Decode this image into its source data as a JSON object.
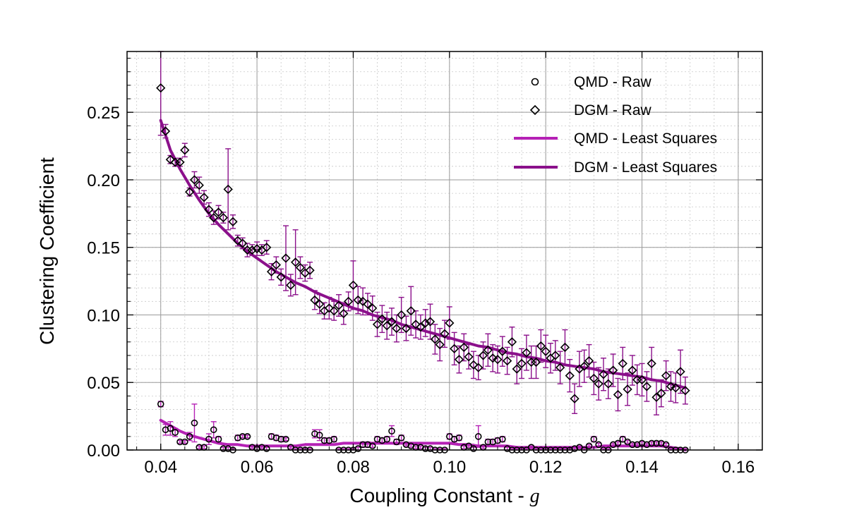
{
  "chart_data": {
    "type": "scatter",
    "xlabel": "Coupling Constant - ",
    "xlabel_symbol": "g",
    "ylabel": "Clustering Coefficient",
    "xlim": [
      0.033,
      0.165
    ],
    "ylim": [
      0.0,
      0.295
    ],
    "xticks": [
      0.04,
      0.06,
      0.08,
      0.1,
      0.12,
      0.14,
      0.16
    ],
    "xtick_labels": [
      "0.04",
      "0.06",
      "0.08",
      "0.10",
      "0.12",
      "0.14",
      "0.16"
    ],
    "yticks": [
      0.0,
      0.05,
      0.1,
      0.15,
      0.2,
      0.25
    ],
    "ytick_labels": [
      "0.00",
      "0.05",
      "0.10",
      "0.15",
      "0.20",
      "0.25"
    ],
    "grid": true,
    "legend_position": "top-right",
    "legend": [
      {
        "label": "QMD - Raw",
        "marker": "circle"
      },
      {
        "label": "DGM - Raw",
        "marker": "diamond"
      },
      {
        "label": "QMD - Least Squares",
        "marker": "line"
      },
      {
        "label": "DGM - Least Squares",
        "marker": "line"
      }
    ],
    "colors": {
      "qmd_fit": "#b521b5",
      "dgm_fit": "#8b108b",
      "qmd_error": "#b521b5",
      "dgm_error": "#8b108b",
      "marker": "#000000",
      "grid_major": "#9a9a9a",
      "grid_minor": "#c8c8c8"
    },
    "series": [
      {
        "name": "QMD - Raw",
        "marker": "circle",
        "x": [
          0.04,
          0.041,
          0.042,
          0.043,
          0.044,
          0.045,
          0.046,
          0.047,
          0.048,
          0.049,
          0.05,
          0.051,
          0.052,
          0.053,
          0.054,
          0.055,
          0.056,
          0.057,
          0.058,
          0.059,
          0.06,
          0.061,
          0.062,
          0.063,
          0.064,
          0.065,
          0.066,
          0.067,
          0.068,
          0.069,
          0.07,
          0.071,
          0.072,
          0.073,
          0.074,
          0.075,
          0.076,
          0.077,
          0.078,
          0.079,
          0.08,
          0.081,
          0.082,
          0.083,
          0.084,
          0.085,
          0.086,
          0.087,
          0.088,
          0.089,
          0.09,
          0.091,
          0.092,
          0.093,
          0.094,
          0.095,
          0.096,
          0.097,
          0.098,
          0.099,
          0.1,
          0.101,
          0.102,
          0.103,
          0.104,
          0.105,
          0.106,
          0.107,
          0.108,
          0.109,
          0.11,
          0.111,
          0.112,
          0.113,
          0.114,
          0.115,
          0.116,
          0.117,
          0.118,
          0.119,
          0.12,
          0.121,
          0.122,
          0.123,
          0.124,
          0.125,
          0.126,
          0.127,
          0.128,
          0.129,
          0.13,
          0.131,
          0.132,
          0.133,
          0.134,
          0.135,
          0.136,
          0.137,
          0.138,
          0.139,
          0.14,
          0.141,
          0.142,
          0.143,
          0.144,
          0.145,
          0.146,
          0.147,
          0.148,
          0.149
        ],
        "y": [
          0.034,
          0.015,
          0.016,
          0.013,
          0.006,
          0.006,
          0.01,
          0.02,
          0.002,
          0.002,
          0.008,
          0.015,
          0.008,
          0.001,
          0.001,
          0.0,
          0.009,
          0.01,
          0.01,
          0.002,
          0.001,
          0.002,
          0.001,
          0.01,
          0.009,
          0.008,
          0.008,
          0.002,
          0.0,
          0.0,
          0.0,
          0.0,
          0.012,
          0.011,
          0.007,
          0.007,
          0.008,
          0.0,
          0.0,
          0.0,
          0.0,
          0.001,
          0.004,
          0.004,
          0.003,
          0.008,
          0.007,
          0.008,
          0.014,
          0.006,
          0.009,
          0.004,
          0.003,
          0.002,
          0.002,
          0.001,
          0.001,
          0.0,
          0.0,
          0.0,
          0.01,
          0.008,
          0.009,
          0.002,
          0.003,
          0.001,
          0.01,
          0.002,
          0.006,
          0.006,
          0.007,
          0.008,
          0.001,
          0.0,
          0.0,
          0.0,
          0.0,
          0.002,
          0.0,
          0.0,
          0.0,
          0.0,
          0.0,
          0.0,
          0.0,
          0.0,
          0.001,
          0.002,
          0.0,
          0.003,
          0.008,
          0.004,
          0.0,
          0.0,
          0.004,
          0.005,
          0.008,
          0.006,
          0.004,
          0.004,
          0.005,
          0.004,
          0.005,
          0.005,
          0.005,
          0.004,
          0.0,
          0.0,
          0.0,
          0.0
        ],
        "yerr": [
          0.002,
          0.004,
          0.005,
          0.003,
          0.001,
          0.001,
          0.003,
          0.014,
          0.001,
          0.001,
          0.004,
          0.006,
          0.002,
          0.001,
          0.001,
          0.001,
          0.002,
          0.001,
          0.001,
          0.001,
          0.001,
          0.001,
          0.001,
          0.002,
          0.002,
          0.002,
          0.001,
          0.001,
          0.001,
          0.001,
          0.001,
          0.001,
          0.003,
          0.004,
          0.002,
          0.002,
          0.002,
          0.001,
          0.001,
          0.001,
          0.001,
          0.001,
          0.002,
          0.002,
          0.001,
          0.002,
          0.002,
          0.002,
          0.004,
          0.002,
          0.002,
          0.001,
          0.001,
          0.001,
          0.001,
          0.001,
          0.001,
          0.001,
          0.001,
          0.001,
          0.002,
          0.002,
          0.002,
          0.001,
          0.001,
          0.001,
          0.008,
          0.001,
          0.002,
          0.002,
          0.002,
          0.002,
          0.001,
          0.001,
          0.001,
          0.001,
          0.001,
          0.001,
          0.001,
          0.001,
          0.001,
          0.001,
          0.001,
          0.001,
          0.001,
          0.001,
          0.001,
          0.001,
          0.001,
          0.001,
          0.002,
          0.001,
          0.001,
          0.001,
          0.001,
          0.001,
          0.002,
          0.001,
          0.001,
          0.001,
          0.001,
          0.001,
          0.001,
          0.001,
          0.001,
          0.001,
          0.001,
          0.001,
          0.001,
          0.001
        ]
      },
      {
        "name": "DGM - Raw",
        "marker": "diamond",
        "x": [
          0.04,
          0.041,
          0.042,
          0.043,
          0.044,
          0.045,
          0.046,
          0.047,
          0.048,
          0.049,
          0.05,
          0.051,
          0.052,
          0.053,
          0.054,
          0.055,
          0.056,
          0.057,
          0.058,
          0.059,
          0.06,
          0.061,
          0.062,
          0.063,
          0.064,
          0.065,
          0.066,
          0.067,
          0.068,
          0.069,
          0.07,
          0.071,
          0.072,
          0.073,
          0.074,
          0.075,
          0.076,
          0.077,
          0.078,
          0.079,
          0.08,
          0.081,
          0.082,
          0.083,
          0.084,
          0.085,
          0.086,
          0.087,
          0.088,
          0.089,
          0.09,
          0.091,
          0.092,
          0.093,
          0.094,
          0.095,
          0.096,
          0.097,
          0.098,
          0.099,
          0.1,
          0.101,
          0.102,
          0.103,
          0.104,
          0.105,
          0.106,
          0.107,
          0.108,
          0.109,
          0.11,
          0.111,
          0.112,
          0.113,
          0.114,
          0.115,
          0.116,
          0.117,
          0.118,
          0.119,
          0.12,
          0.121,
          0.122,
          0.123,
          0.124,
          0.125,
          0.126,
          0.127,
          0.128,
          0.129,
          0.13,
          0.131,
          0.132,
          0.133,
          0.134,
          0.135,
          0.136,
          0.137,
          0.138,
          0.139,
          0.14,
          0.141,
          0.142,
          0.143,
          0.144,
          0.145,
          0.146,
          0.147,
          0.148,
          0.149
        ],
        "y": [
          0.268,
          0.236,
          0.215,
          0.213,
          0.213,
          0.222,
          0.191,
          0.2,
          0.196,
          0.187,
          0.178,
          0.172,
          0.176,
          0.172,
          0.193,
          0.169,
          0.155,
          0.153,
          0.148,
          0.148,
          0.149,
          0.148,
          0.15,
          0.132,
          0.137,
          0.128,
          0.142,
          0.122,
          0.139,
          0.135,
          0.131,
          0.133,
          0.111,
          0.108,
          0.103,
          0.105,
          0.103,
          0.107,
          0.101,
          0.11,
          0.122,
          0.111,
          0.11,
          0.108,
          0.105,
          0.093,
          0.097,
          0.092,
          0.095,
          0.09,
          0.1,
          0.09,
          0.103,
          0.093,
          0.091,
          0.094,
          0.095,
          0.082,
          0.078,
          0.086,
          0.094,
          0.075,
          0.067,
          0.076,
          0.069,
          0.063,
          0.061,
          0.07,
          0.074,
          0.068,
          0.067,
          0.073,
          0.066,
          0.08,
          0.06,
          0.064,
          0.072,
          0.065,
          0.065,
          0.077,
          0.073,
          0.068,
          0.07,
          0.061,
          0.076,
          0.055,
          0.038,
          0.06,
          0.062,
          0.066,
          0.053,
          0.049,
          0.056,
          0.049,
          0.059,
          0.041,
          0.064,
          0.045,
          0.059,
          0.052,
          0.052,
          0.047,
          0.064,
          0.039,
          0.042,
          0.055,
          0.047,
          0.046,
          0.058,
          0.044
        ],
        "yerr": [
          0.035,
          0.005,
          0.003,
          0.003,
          0.003,
          0.005,
          0.003,
          0.006,
          0.006,
          0.005,
          0.005,
          0.005,
          0.005,
          0.004,
          0.03,
          0.005,
          0.004,
          0.004,
          0.005,
          0.004,
          0.005,
          0.004,
          0.005,
          0.006,
          0.006,
          0.006,
          0.024,
          0.008,
          0.024,
          0.008,
          0.006,
          0.006,
          0.007,
          0.007,
          0.006,
          0.008,
          0.007,
          0.008,
          0.008,
          0.007,
          0.018,
          0.01,
          0.01,
          0.008,
          0.009,
          0.009,
          0.01,
          0.01,
          0.01,
          0.01,
          0.013,
          0.009,
          0.018,
          0.01,
          0.009,
          0.01,
          0.013,
          0.011,
          0.012,
          0.01,
          0.012,
          0.012,
          0.01,
          0.01,
          0.009,
          0.01,
          0.009,
          0.01,
          0.012,
          0.01,
          0.01,
          0.011,
          0.01,
          0.011,
          0.011,
          0.011,
          0.013,
          0.012,
          0.012,
          0.012,
          0.012,
          0.011,
          0.011,
          0.012,
          0.013,
          0.012,
          0.011,
          0.013,
          0.012,
          0.012,
          0.012,
          0.012,
          0.012,
          0.011,
          0.012,
          0.012,
          0.012,
          0.012,
          0.011,
          0.011,
          0.012,
          0.011,
          0.012,
          0.013,
          0.01,
          0.011,
          0.011,
          0.011,
          0.016,
          0.01
        ]
      },
      {
        "name": "QMD - Least Squares",
        "x": [
          0.04,
          0.042,
          0.044,
          0.046,
          0.048,
          0.05,
          0.052,
          0.054,
          0.056,
          0.058,
          0.06,
          0.062,
          0.064,
          0.066,
          0.068,
          0.07,
          0.072,
          0.074,
          0.076,
          0.078,
          0.08,
          0.082,
          0.084,
          0.086,
          0.088,
          0.09,
          0.092,
          0.094,
          0.096,
          0.098,
          0.1,
          0.102,
          0.104,
          0.106,
          0.108,
          0.11,
          0.112,
          0.114,
          0.116,
          0.118,
          0.12,
          0.122,
          0.124,
          0.126,
          0.128,
          0.13,
          0.132,
          0.134,
          0.136,
          0.138,
          0.14,
          0.142,
          0.144,
          0.146,
          0.148,
          0.149
        ],
        "y": [
          0.022,
          0.018,
          0.014,
          0.011,
          0.009,
          0.007,
          0.005,
          0.004,
          0.004,
          0.003,
          0.003,
          0.003,
          0.003,
          0.003,
          0.003,
          0.004,
          0.004,
          0.004,
          0.004,
          0.005,
          0.005,
          0.005,
          0.005,
          0.005,
          0.005,
          0.005,
          0.005,
          0.005,
          0.005,
          0.005,
          0.005,
          0.004,
          0.004,
          0.003,
          0.003,
          0.003,
          0.003,
          0.002,
          0.002,
          0.002,
          0.002,
          0.002,
          0.002,
          0.002,
          0.002,
          0.002,
          0.003,
          0.003,
          0.003,
          0.003,
          0.003,
          0.003,
          0.003,
          0.002,
          0.001,
          0.0
        ]
      },
      {
        "name": "DGM - Least Squares",
        "x": [
          0.04,
          0.042,
          0.044,
          0.046,
          0.048,
          0.05,
          0.052,
          0.054,
          0.056,
          0.058,
          0.06,
          0.062,
          0.064,
          0.066,
          0.068,
          0.07,
          0.072,
          0.074,
          0.076,
          0.078,
          0.08,
          0.082,
          0.084,
          0.086,
          0.088,
          0.09,
          0.092,
          0.094,
          0.096,
          0.098,
          0.1,
          0.102,
          0.104,
          0.106,
          0.108,
          0.11,
          0.112,
          0.114,
          0.116,
          0.118,
          0.12,
          0.122,
          0.124,
          0.126,
          0.128,
          0.13,
          0.132,
          0.134,
          0.136,
          0.138,
          0.14,
          0.142,
          0.144,
          0.146,
          0.148,
          0.149
        ],
        "y": [
          0.244,
          0.222,
          0.208,
          0.196,
          0.185,
          0.175,
          0.167,
          0.16,
          0.153,
          0.147,
          0.142,
          0.137,
          0.132,
          0.128,
          0.124,
          0.121,
          0.117,
          0.114,
          0.111,
          0.108,
          0.105,
          0.103,
          0.1,
          0.098,
          0.096,
          0.093,
          0.091,
          0.089,
          0.087,
          0.085,
          0.083,
          0.081,
          0.079,
          0.077,
          0.076,
          0.074,
          0.072,
          0.071,
          0.069,
          0.068,
          0.066,
          0.065,
          0.063,
          0.062,
          0.061,
          0.06,
          0.058,
          0.057,
          0.056,
          0.055,
          0.054,
          0.052,
          0.051,
          0.049,
          0.047,
          0.046
        ]
      }
    ]
  }
}
